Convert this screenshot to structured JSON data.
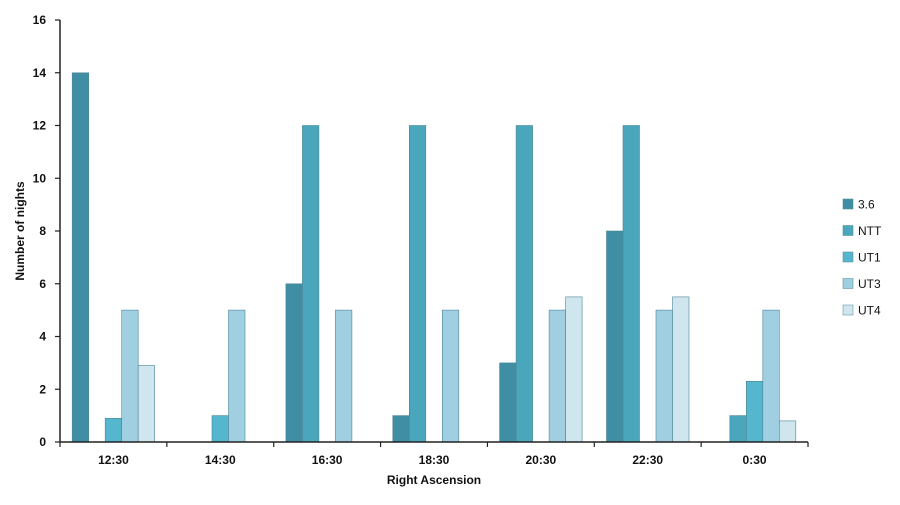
{
  "chart_data": {
    "type": "bar",
    "title": "",
    "xlabel": "Right Ascension",
    "ylabel": "Number of nights",
    "categories": [
      "12:30",
      "14:30",
      "16:30",
      "18:30",
      "20:30",
      "22:30",
      "0:30"
    ],
    "ylim": [
      0,
      16
    ],
    "yticks": [
      "0",
      "2",
      "4",
      "6",
      "8",
      "10",
      "12",
      "14",
      "16"
    ],
    "grid": false,
    "legend_position": "right",
    "series": [
      {
        "name": "3.6",
        "color": "#3f8ea3",
        "values": [
          14,
          0,
          6,
          1,
          3,
          8,
          0
        ]
      },
      {
        "name": "NTT",
        "color": "#4aa6ba",
        "values": [
          0,
          0,
          12,
          12,
          12,
          12,
          1
        ]
      },
      {
        "name": "UT1",
        "color": "#56b6ce",
        "values": [
          0.9,
          1,
          0,
          0,
          0,
          0,
          2.3
        ]
      },
      {
        "name": "UT3",
        "color": "#9fcfe0",
        "values": [
          5,
          5,
          5,
          5,
          5,
          5,
          5
        ]
      },
      {
        "name": "UT4",
        "color": "#cfe6ef",
        "values": [
          2.9,
          0,
          0,
          0,
          5.5,
          5.5,
          0.8
        ]
      }
    ]
  }
}
